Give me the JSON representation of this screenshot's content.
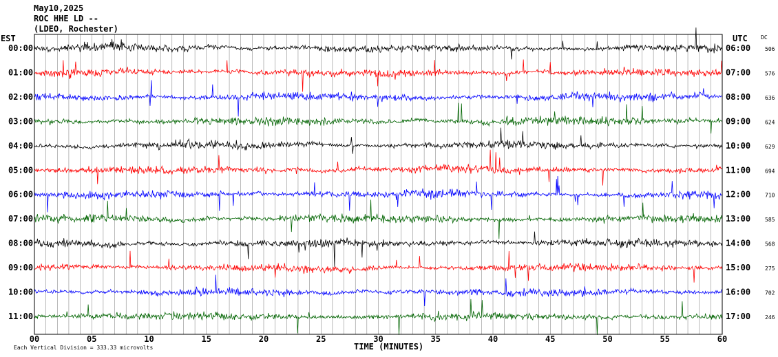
{
  "header": {
    "line1": "May10,2025",
    "line2": "ROC HHE LD --",
    "line3": "(LDEO, Rochester)"
  },
  "axes": {
    "left_label": "EST",
    "right_label": "UTC",
    "dc_label": "DC",
    "xlabel": "TIME (MINUTES)",
    "footer": "Each Vertical Division =  333.33 microvolts"
  },
  "chart_data": {
    "type": "line",
    "xlim": [
      0,
      60
    ],
    "x_ticks": [
      "00",
      "05",
      "10",
      "15",
      "20",
      "25",
      "30",
      "35",
      "40",
      "45",
      "50",
      "55",
      "60"
    ],
    "rows": [
      {
        "est": "00:00",
        "utc": "06:00",
        "dc": "506",
        "color": "#000000"
      },
      {
        "est": "01:00",
        "utc": "07:00",
        "dc": "576",
        "color": "#ff0000"
      },
      {
        "est": "02:00",
        "utc": "08:00",
        "dc": "636",
        "color": "#0000ff"
      },
      {
        "est": "03:00",
        "utc": "09:00",
        "dc": "624",
        "color": "#006400"
      },
      {
        "est": "04:00",
        "utc": "10:00",
        "dc": "629",
        "color": "#000000"
      },
      {
        "est": "05:00",
        "utc": "11:00",
        "dc": "694",
        "color": "#ff0000"
      },
      {
        "est": "06:00",
        "utc": "12:00",
        "dc": "710",
        "color": "#0000ff"
      },
      {
        "est": "07:00",
        "utc": "13:00",
        "dc": "585",
        "color": "#006400"
      },
      {
        "est": "08:00",
        "utc": "14:00",
        "dc": "568",
        "color": "#000000"
      },
      {
        "est": "09:00",
        "utc": "15:00",
        "dc": "275",
        "color": "#ff0000"
      },
      {
        "est": "10:00",
        "utc": "16:00",
        "dc": "702",
        "color": "#0000ff"
      },
      {
        "est": "11:00",
        "utc": "17:00",
        "dc": "246",
        "color": "#006400"
      }
    ]
  }
}
